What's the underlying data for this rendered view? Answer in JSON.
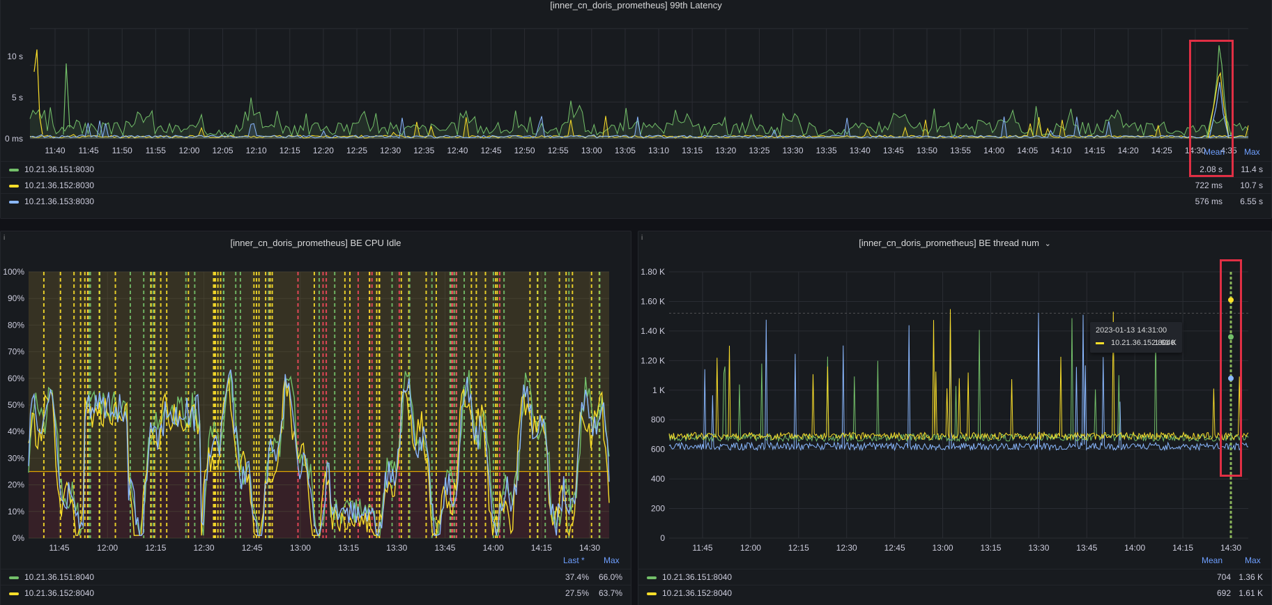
{
  "colors": {
    "green": "#73bf69",
    "yellow": "#fade2a",
    "blue": "#8ab8ff",
    "red": "#f2495c",
    "grid": "#2a2d33",
    "text": "#ccccdc",
    "highlight": "#e02f44"
  },
  "panels": {
    "latency": {
      "title": "[inner_cn_doris_prometheus] 99th Latency",
      "y_ticks": [
        "10 s",
        "5 s",
        "0 ms"
      ],
      "x_ticks": [
        "11:40",
        "11:45",
        "11:50",
        "11:55",
        "12:00",
        "12:05",
        "12:10",
        "12:15",
        "12:20",
        "12:25",
        "12:30",
        "12:35",
        "12:40",
        "12:45",
        "12:50",
        "12:55",
        "13:00",
        "13:05",
        "13:10",
        "13:15",
        "13:20",
        "13:25",
        "13:30",
        "13:35",
        "13:40",
        "13:45",
        "13:50",
        "13:55",
        "14:00",
        "14:05",
        "14:10",
        "14:15",
        "14:20",
        "14:25",
        "14:30",
        "4:35"
      ],
      "legend_headers": {
        "mean": "Mean",
        "max": "Max"
      },
      "legend": [
        {
          "name": "10.21.36.151:8030",
          "mean": "2.08 s",
          "max": "11.4 s",
          "color": "green"
        },
        {
          "name": "10.21.36.152:8030",
          "mean": "722 ms",
          "max": "10.7 s",
          "color": "yellow"
        },
        {
          "name": "10.21.36.153:8030",
          "mean": "576 ms",
          "max": "6.55 s",
          "color": "blue"
        }
      ]
    },
    "cpu": {
      "title": "[inner_cn_doris_prometheus] BE CPU Idle",
      "info": "i",
      "y_ticks": [
        "100%",
        "90%",
        "80%",
        "70%",
        "60%",
        "50%",
        "40%",
        "30%",
        "20%",
        "10%",
        "0%"
      ],
      "x_ticks": [
        "11:45",
        "12:00",
        "12:15",
        "12:30",
        "12:45",
        "13:00",
        "13:15",
        "13:30",
        "13:45",
        "14:00",
        "14:15",
        "14:30"
      ],
      "legend_headers": {
        "last": "Last *",
        "max": "Max"
      },
      "legend": [
        {
          "name": "10.21.36.151:8040",
          "last": "37.4%",
          "max": "66.0%",
          "color": "green"
        },
        {
          "name": "10.21.36.152:8040",
          "last": "27.5%",
          "max": "63.7%",
          "color": "yellow"
        }
      ]
    },
    "threads": {
      "title": "[inner_cn_doris_prometheus] BE thread num",
      "title_icon": "⌄",
      "info": "i",
      "y_ticks": [
        "1.80 K",
        "1.60 K",
        "1.40 K",
        "1.20 K",
        "1 K",
        "800",
        "600",
        "400",
        "200",
        "0"
      ],
      "x_ticks": [
        "11:45",
        "12:00",
        "12:15",
        "12:30",
        "12:45",
        "13:00",
        "13:15",
        "13:30",
        "13:45",
        "14:00",
        "14:15",
        "14:30"
      ],
      "legend_headers": {
        "mean": "Mean",
        "max": "Max"
      },
      "legend": [
        {
          "name": "10.21.36.151:8040",
          "mean": "704",
          "max": "1.36 K",
          "color": "green"
        },
        {
          "name": "10.21.36.152:8040",
          "mean": "692",
          "max": "1.61 K",
          "color": "yellow"
        }
      ],
      "tooltip": {
        "time": "2023-01-13 14:31:00",
        "series": "10.21.36.152:8040",
        "value": "1.61 K"
      }
    }
  }
}
